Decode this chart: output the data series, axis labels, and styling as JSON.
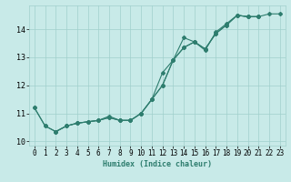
{
  "title": "",
  "xlabel": "Humidex (Indice chaleur)",
  "background_color": "#c8eae8",
  "grid_color": "#a0d0cc",
  "line_color": "#2e7d6e",
  "xlim": [
    -0.5,
    23.5
  ],
  "ylim": [
    9.85,
    14.85
  ],
  "yticks": [
    10,
    11,
    12,
    13,
    14
  ],
  "xticks": [
    0,
    1,
    2,
    3,
    4,
    5,
    6,
    7,
    8,
    9,
    10,
    11,
    12,
    13,
    14,
    15,
    16,
    17,
    18,
    19,
    20,
    21,
    22,
    23
  ],
  "s1_x": [
    0,
    1,
    2,
    3,
    4,
    5,
    6,
    7,
    8,
    9,
    10,
    11,
    12,
    13,
    14,
    15,
    16,
    17,
    18,
    19,
    20,
    21
  ],
  "s1_y": [
    11.2,
    10.55,
    10.35,
    10.55,
    10.65,
    10.7,
    10.75,
    10.9,
    10.75,
    10.75,
    11.0,
    11.5,
    12.45,
    12.9,
    13.7,
    13.55,
    13.25,
    13.9,
    14.2,
    14.5,
    14.45,
    14.45
  ],
  "s2_x": [
    0,
    1,
    2,
    3,
    4,
    5,
    6,
    7,
    8,
    9,
    10,
    11,
    12,
    13,
    14,
    15,
    16,
    17,
    18,
    19,
    20,
    21
  ],
  "s2_y": [
    11.2,
    10.55,
    10.35,
    10.55,
    10.65,
    10.7,
    10.75,
    10.85,
    10.75,
    10.75,
    11.0,
    11.5,
    12.0,
    12.9,
    13.35,
    13.55,
    13.3,
    13.85,
    14.15,
    14.5,
    14.45,
    14.45
  ],
  "s3_x": [
    2,
    3,
    4,
    5,
    6,
    7,
    8,
    9,
    10,
    11,
    12,
    13,
    14,
    15,
    16,
    17,
    18,
    19,
    20,
    21,
    22,
    23
  ],
  "s3_y": [
    10.35,
    10.55,
    10.65,
    10.7,
    10.75,
    10.85,
    10.75,
    10.75,
    11.0,
    11.5,
    12.0,
    12.9,
    13.35,
    13.55,
    13.3,
    13.85,
    14.15,
    14.5,
    14.45,
    14.45,
    14.55,
    14.55
  ],
  "marker_size": 2.0,
  "line_width": 0.8,
  "tick_fontsize": 5.5,
  "xlabel_fontsize": 6.0
}
